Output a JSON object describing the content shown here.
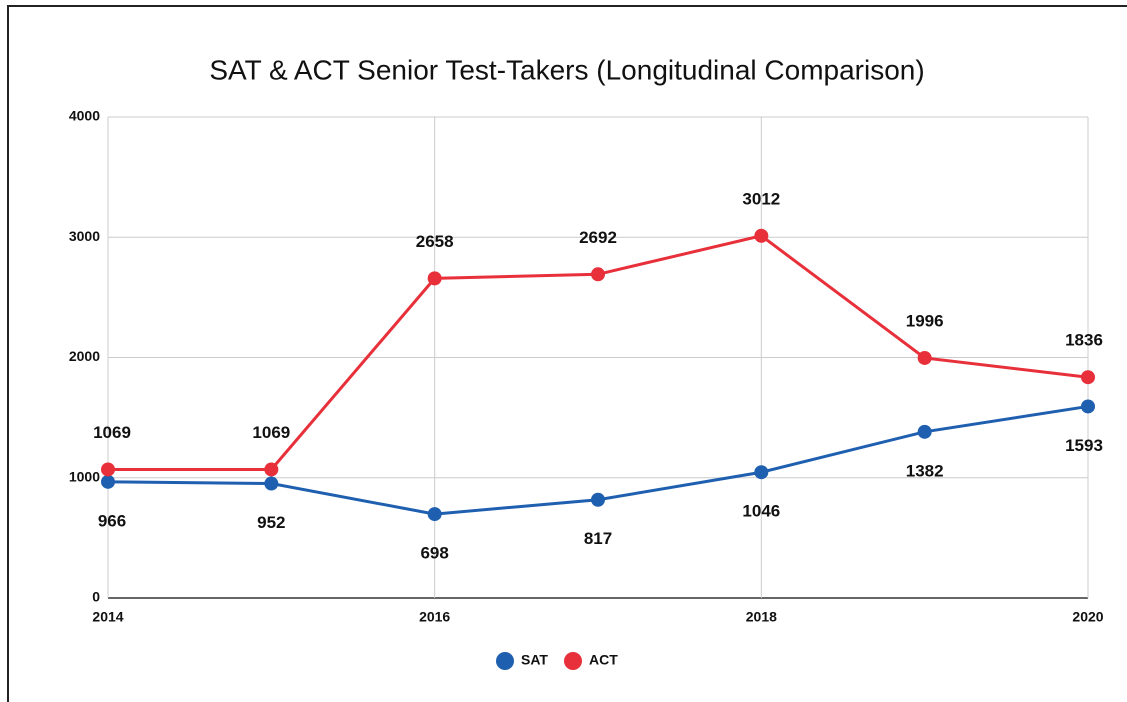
{
  "chart_data": {
    "type": "line",
    "title": "SAT & ACT Senior Test-Takers (Longitudinal Comparison)",
    "x": [
      2014,
      2015,
      2016,
      2017,
      2018,
      2019,
      2020
    ],
    "xlim": [
      2014,
      2020
    ],
    "xticks": [
      2014,
      2016,
      2018,
      2020
    ],
    "ylim": [
      0,
      4000
    ],
    "yticks": [
      0,
      1000,
      2000,
      3000,
      4000
    ],
    "grid": true,
    "legend": "bottom",
    "series": [
      {
        "name": "SAT",
        "color": "#1f5fb0",
        "values": [
          966,
          952,
          698,
          817,
          1046,
          1382,
          1593
        ]
      },
      {
        "name": "ACT",
        "color": "#e8303a",
        "values": [
          1069,
          1069,
          2658,
          2692,
          3012,
          1996,
          1836
        ]
      }
    ]
  }
}
